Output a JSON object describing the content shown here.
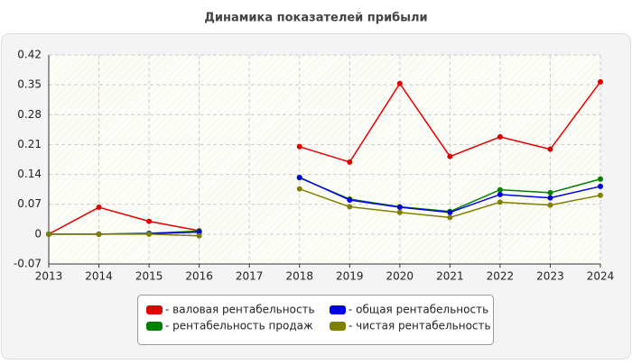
{
  "chart_data": {
    "type": "line",
    "title": "Динамика показателей прибыли",
    "categories": [
      "2013",
      "2014",
      "2015",
      "2016",
      "2017",
      "2018",
      "2019",
      "2020",
      "2021",
      "2022",
      "2023",
      "2024"
    ],
    "series": [
      {
        "name": "- валовая рентабельность",
        "color": "#e00000",
        "values": [
          0,
          0.063,
          0.03,
          0.008,
          null,
          0.205,
          0.169,
          0.353,
          0.182,
          0.228,
          0.199,
          0.357
        ]
      },
      {
        "name": "- рентабельность продаж",
        "color": "#008000",
        "values": [
          0,
          0,
          0.002,
          0.007,
          null,
          0.132,
          0.082,
          0.064,
          0.053,
          0.104,
          0.097,
          0.129
        ]
      },
      {
        "name": "- общая рентабельность",
        "color": "#0000e0",
        "values": [
          0,
          0,
          0.001,
          0.005,
          null,
          0.133,
          0.08,
          0.063,
          0.051,
          0.093,
          0.085,
          0.112
        ]
      },
      {
        "name": "- чистая рентабельность",
        "color": "#808000",
        "values": [
          0,
          0,
          0,
          -0.004,
          null,
          0.106,
          0.064,
          0.051,
          0.039,
          0.075,
          0.068,
          0.091
        ]
      }
    ],
    "ylim": [
      -0.07,
      0.42
    ],
    "yticks": [
      -0.07,
      0,
      0.07,
      0.14,
      0.21,
      0.28,
      0.35,
      0.42
    ],
    "grid": true,
    "legend": "bottom"
  }
}
